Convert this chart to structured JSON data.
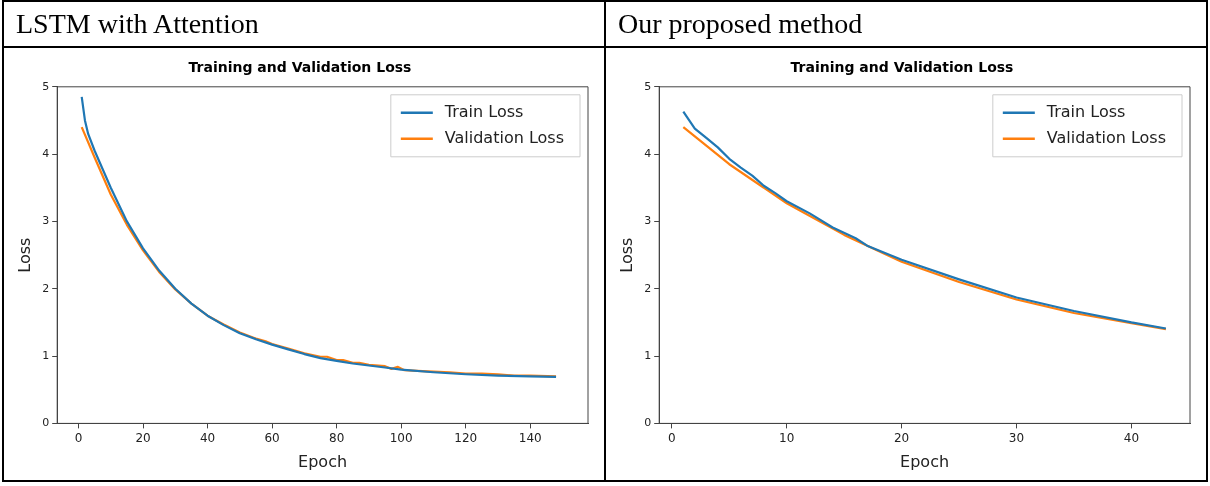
{
  "chart_data": [
    {
      "type": "line",
      "title": "LSTM with Attention",
      "subtitle": "Training and Validation Loss",
      "xlabel": "Epoch",
      "ylabel": "Loss",
      "xlim": [
        -6.6,
        157.9
      ],
      "xticks": [
        0,
        20,
        40,
        60,
        80,
        100,
        120,
        140
      ],
      "ylim": [
        0,
        5
      ],
      "yticks": [
        0,
        1,
        2,
        3,
        4,
        5
      ],
      "grid": false,
      "legend": "top right",
      "marker": "none",
      "line_style": "solid",
      "series": [
        {
          "name": "Train Loss",
          "color": "#1f77b4",
          "x": [
            1,
            2,
            3,
            5,
            10,
            15,
            20,
            25,
            30,
            35,
            40,
            45,
            50,
            55,
            60,
            65,
            70,
            75,
            80,
            85,
            90,
            95,
            100,
            110,
            120,
            130,
            140,
            148
          ],
          "values": [
            4.85,
            4.5,
            4.3,
            4.05,
            3.5,
            3.0,
            2.6,
            2.27,
            2.0,
            1.78,
            1.6,
            1.46,
            1.34,
            1.25,
            1.17,
            1.1,
            1.03,
            0.97,
            0.93,
            0.89,
            0.86,
            0.83,
            0.8,
            0.76,
            0.73,
            0.71,
            0.7,
            0.69
          ]
        },
        {
          "name": "Validation Loss",
          "color": "#ff7f0e",
          "x": [
            1,
            5,
            10,
            15,
            20,
            25,
            30,
            35,
            40,
            45,
            50,
            55,
            58,
            60,
            65,
            70,
            75,
            77,
            80,
            82,
            85,
            87,
            90,
            95,
            97,
            99,
            101,
            105,
            110,
            115,
            120,
            125,
            130,
            135,
            140,
            148
          ],
          "values": [
            4.4,
            3.95,
            3.4,
            2.95,
            2.57,
            2.25,
            1.99,
            1.78,
            1.6,
            1.47,
            1.35,
            1.26,
            1.22,
            1.18,
            1.11,
            1.04,
            0.99,
            0.99,
            0.94,
            0.94,
            0.9,
            0.9,
            0.87,
            0.85,
            0.81,
            0.84,
            0.79,
            0.78,
            0.77,
            0.76,
            0.74,
            0.74,
            0.73,
            0.71,
            0.71,
            0.7
          ]
        }
      ]
    },
    {
      "type": "line",
      "title": "Our proposed method",
      "subtitle": "Training and Validation Loss",
      "xlabel": "Epoch",
      "ylabel": "Loss",
      "xlim": [
        -1.1,
        45.1
      ],
      "xticks": [
        0,
        10,
        20,
        30,
        40
      ],
      "ylim": [
        0,
        5
      ],
      "yticks": [
        0,
        1,
        2,
        3,
        4,
        5
      ],
      "grid": false,
      "legend": "top right",
      "marker": "none",
      "line_style": "solid",
      "series": [
        {
          "name": "Train Loss",
          "color": "#1f77b4",
          "x": [
            1,
            2,
            3,
            4,
            5,
            6,
            7,
            8,
            9,
            10,
            12,
            14,
            16,
            17,
            20,
            25,
            30,
            35,
            40,
            43
          ],
          "values": [
            4.63,
            4.38,
            4.24,
            4.1,
            3.93,
            3.8,
            3.68,
            3.53,
            3.42,
            3.3,
            3.12,
            2.91,
            2.75,
            2.64,
            2.43,
            2.14,
            1.87,
            1.67,
            1.5,
            1.41
          ]
        },
        {
          "name": "Validation Loss",
          "color": "#ff7f0e",
          "x": [
            1,
            5,
            10,
            15,
            20,
            25,
            30,
            35,
            40,
            43
          ],
          "values": [
            4.4,
            3.85,
            3.27,
            2.8,
            2.4,
            2.1,
            1.84,
            1.64,
            1.49,
            1.4
          ]
        }
      ]
    }
  ]
}
